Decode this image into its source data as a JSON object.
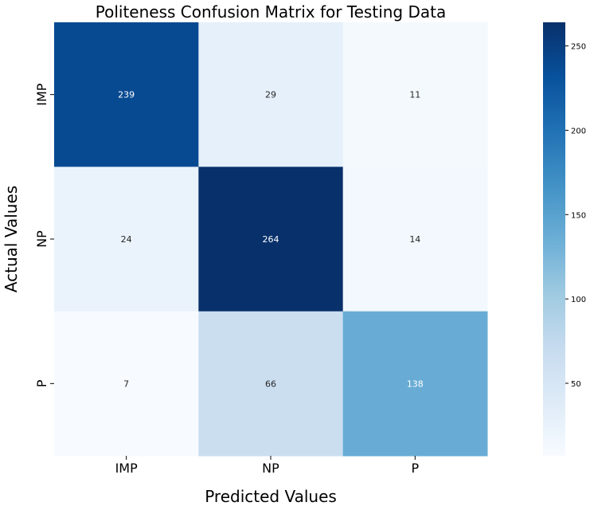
{
  "chart_data": {
    "type": "heatmap",
    "title": "Politeness Confusion Matrix for Testing Data",
    "xlabel": "Predicted Values",
    "ylabel": "Actual Values",
    "x_categories": [
      "IMP",
      "NP",
      "P"
    ],
    "y_categories": [
      "IMP",
      "NP",
      "P"
    ],
    "values": [
      [
        239,
        29,
        11
      ],
      [
        24,
        264,
        14
      ],
      [
        7,
        66,
        138
      ]
    ],
    "colormap": "Blues",
    "value_range": [
      7,
      264
    ],
    "colorbar_ticks": [
      50,
      100,
      150,
      200,
      250
    ],
    "colors": {
      "low": "#f7fbff",
      "high": "#08306b",
      "text_dark": "#262626",
      "text_light": "#ffffff"
    }
  }
}
